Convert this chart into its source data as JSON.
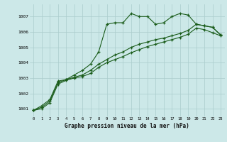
{
  "xlabel": "Graphe pression niveau de la mer (hPa)",
  "bg_color": "#cce8e8",
  "grid_color": "#aacccc",
  "line_color": "#1a5c1a",
  "xlim": [
    -0.5,
    23.5
  ],
  "ylim": [
    1000.5,
    1007.8
  ],
  "yticks": [
    1001,
    1002,
    1003,
    1004,
    1005,
    1006,
    1007
  ],
  "xticks": [
    0,
    1,
    2,
    3,
    4,
    5,
    6,
    7,
    8,
    9,
    10,
    11,
    12,
    13,
    14,
    15,
    16,
    17,
    18,
    19,
    20,
    21,
    22,
    23
  ],
  "series1_x": [
    0,
    1,
    2,
    3,
    4,
    5,
    6,
    7,
    8,
    9,
    10,
    11,
    12,
    13,
    14,
    15,
    16,
    17,
    18,
    19,
    20,
    21,
    22,
    23
  ],
  "series1_y": [
    1000.9,
    1001.2,
    1001.6,
    1002.8,
    1002.9,
    1003.2,
    1003.5,
    1003.9,
    1004.7,
    1006.5,
    1006.6,
    1006.6,
    1007.2,
    1007.0,
    1007.0,
    1006.5,
    1006.6,
    1007.0,
    1007.2,
    1007.1,
    1006.5,
    1006.4,
    1006.3,
    1005.8
  ],
  "series2_x": [
    0,
    1,
    2,
    3,
    4,
    5,
    6,
    7,
    8,
    9,
    10,
    11,
    12,
    13,
    14,
    15,
    16,
    17,
    18,
    19,
    20,
    21,
    22,
    23
  ],
  "series2_y": [
    1000.9,
    1001.1,
    1001.5,
    1002.7,
    1002.9,
    1003.05,
    1003.2,
    1003.5,
    1003.9,
    1004.2,
    1004.5,
    1004.7,
    1005.0,
    1005.2,
    1005.35,
    1005.5,
    1005.6,
    1005.75,
    1005.9,
    1006.1,
    1006.5,
    1006.4,
    1006.3,
    1005.8
  ],
  "series3_x": [
    0,
    1,
    2,
    3,
    4,
    5,
    6,
    7,
    8,
    9,
    10,
    11,
    12,
    13,
    14,
    15,
    16,
    17,
    18,
    19,
    20,
    21,
    22,
    23
  ],
  "series3_y": [
    1000.9,
    1001.0,
    1001.4,
    1002.6,
    1002.85,
    1003.0,
    1003.1,
    1003.3,
    1003.7,
    1004.0,
    1004.2,
    1004.4,
    1004.65,
    1004.85,
    1005.05,
    1005.2,
    1005.35,
    1005.5,
    1005.65,
    1005.85,
    1006.25,
    1006.15,
    1005.95,
    1005.75
  ]
}
